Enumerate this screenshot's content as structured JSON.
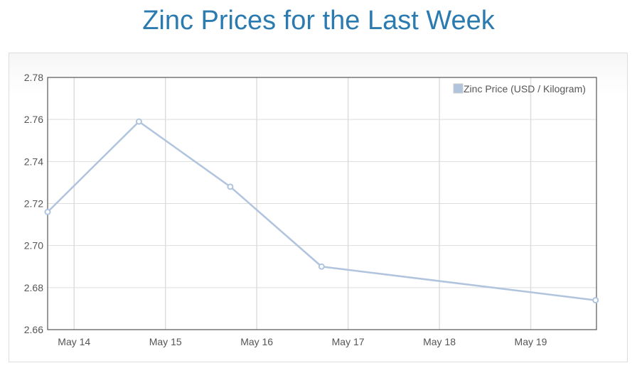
{
  "title": "Zinc Prices for the Last Week",
  "chart_data": {
    "type": "line",
    "title": "Zinc Prices for the Last Week",
    "xlabel": "",
    "ylabel": "",
    "x_unit": "day of May",
    "xlim": [
      13.71,
      19.72
    ],
    "ylim": [
      2.66,
      2.78
    ],
    "grid": true,
    "legend_position": "top-right",
    "x_ticks": [
      {
        "value": 14,
        "label": "May 14"
      },
      {
        "value": 15,
        "label": "May 15"
      },
      {
        "value": 16,
        "label": "May 16"
      },
      {
        "value": 17,
        "label": "May 17"
      },
      {
        "value": 18,
        "label": "May 18"
      },
      {
        "value": 19,
        "label": "May 19"
      }
    ],
    "y_ticks": [
      {
        "value": 2.66,
        "label": "2.66"
      },
      {
        "value": 2.68,
        "label": "2.68"
      },
      {
        "value": 2.7,
        "label": "2.70"
      },
      {
        "value": 2.72,
        "label": "2.72"
      },
      {
        "value": 2.74,
        "label": "2.74"
      },
      {
        "value": 2.76,
        "label": "2.76"
      },
      {
        "value": 2.78,
        "label": "2.78"
      }
    ],
    "series": [
      {
        "name": "Zinc Price (USD / Kilogram)",
        "color": "#b0c4de",
        "x": [
          13.71,
          14.71,
          15.71,
          16.71,
          19.71
        ],
        "values": [
          2.716,
          2.759,
          2.728,
          2.69,
          2.674
        ]
      }
    ]
  }
}
